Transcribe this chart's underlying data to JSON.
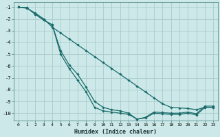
{
  "xlabel": "Humidex (Indice chaleur)",
  "background_color": "#cce8e8",
  "grid_color": "#aacccc",
  "line_color": "#1a6b6b",
  "xlim": [
    -0.5,
    23.5
  ],
  "ylim": [
    -10.6,
    -0.6
  ],
  "yticks": [
    -1,
    -2,
    -3,
    -4,
    -5,
    -6,
    -7,
    -8,
    -9,
    -10
  ],
  "xticks": [
    0,
    1,
    2,
    3,
    4,
    5,
    6,
    7,
    8,
    9,
    10,
    11,
    12,
    13,
    14,
    15,
    16,
    17,
    18,
    19,
    20,
    21,
    22,
    23
  ],
  "line1_x": [
    0,
    1,
    2,
    3,
    4,
    5,
    6,
    7,
    8,
    9,
    10,
    11,
    12,
    13,
    14,
    15,
    16,
    17,
    18,
    19,
    20,
    21,
    22,
    23
  ],
  "line1_y": [
    -1.0,
    -1.05,
    -1.6,
    -2.1,
    -2.5,
    -5.0,
    -6.2,
    -7.2,
    -8.2,
    -9.5,
    -9.8,
    -9.9,
    -10.0,
    -10.1,
    -10.5,
    -10.4,
    -10.0,
    -10.05,
    -10.1,
    -10.1,
    -10.0,
    -10.15,
    -9.5,
    -9.5
  ],
  "line2_x": [
    0,
    1,
    2,
    3,
    4,
    5,
    6,
    7,
    8,
    9,
    10,
    11,
    12,
    13,
    14,
    15,
    16,
    17,
    18,
    19,
    20,
    21,
    22,
    23
  ],
  "line2_y": [
    -1.0,
    -1.05,
    -1.6,
    -2.1,
    -2.5,
    -4.7,
    -5.9,
    -6.7,
    -7.8,
    -9.0,
    -9.5,
    -9.7,
    -9.8,
    -10.0,
    -10.5,
    -10.35,
    -9.9,
    -9.95,
    -10.0,
    -10.0,
    -9.9,
    -10.05,
    -9.4,
    -9.4
  ],
  "line3_x": [
    0,
    1,
    2,
    3,
    4,
    5,
    6,
    7,
    8,
    9,
    10,
    11,
    12,
    13,
    14,
    15,
    16,
    17,
    18,
    19,
    20,
    21,
    22,
    23
  ],
  "line3_y": [
    -1.0,
    -1.1,
    -1.5,
    -2.0,
    -2.7,
    -3.2,
    -3.7,
    -4.2,
    -4.7,
    -5.2,
    -5.7,
    -6.2,
    -6.7,
    -7.2,
    -7.7,
    -8.2,
    -8.7,
    -9.2,
    -9.5,
    -9.55,
    -9.6,
    -9.7,
    -9.5,
    -9.5
  ]
}
